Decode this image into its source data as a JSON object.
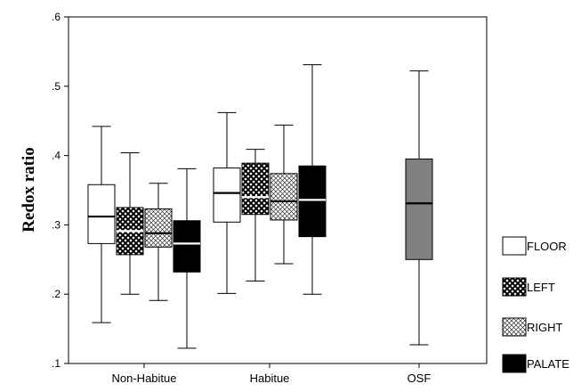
{
  "chart_data": {
    "type": "boxplot",
    "ylabel": "Redox ratio",
    "xlabel": "",
    "ylim": [
      0.1,
      0.6
    ],
    "yticks": [
      0.1,
      0.2,
      0.3,
      0.4,
      0.5,
      0.6
    ],
    "ytick_labels": [
      ".1",
      ".2",
      ".3",
      ".4",
      ".5",
      ".6"
    ],
    "categories": [
      "Non-Habitue",
      "Habitue",
      "OSF"
    ],
    "legend": {
      "position": "right",
      "entries": [
        {
          "name": "FLOOR",
          "fill": "white",
          "color": "#ffffff"
        },
        {
          "name": "LEFT",
          "fill": "dense-crosshatch",
          "color": "#333333"
        },
        {
          "name": "RIGHT",
          "fill": "light-crosshatch",
          "color": "#cccccc"
        },
        {
          "name": "PALATE",
          "fill": "solid",
          "color": "#000000"
        }
      ]
    },
    "series": [
      {
        "name": "FLOOR",
        "category": "Non-Habitue",
        "min": 0.159,
        "q1": 0.273,
        "median": 0.312,
        "q3": 0.358,
        "max": 0.442
      },
      {
        "name": "LEFT",
        "category": "Non-Habitue",
        "min": 0.2,
        "q1": 0.257,
        "median": 0.291,
        "q3": 0.325,
        "max": 0.404
      },
      {
        "name": "RIGHT",
        "category": "Non-Habitue",
        "min": 0.191,
        "q1": 0.268,
        "median": 0.288,
        "q3": 0.323,
        "max": 0.36
      },
      {
        "name": "PALATE",
        "category": "Non-Habitue",
        "min": 0.122,
        "q1": 0.232,
        "median": 0.273,
        "q3": 0.306,
        "max": 0.381
      },
      {
        "name": "FLOOR",
        "category": "Habitue",
        "min": 0.201,
        "q1": 0.304,
        "median": 0.346,
        "q3": 0.382,
        "max": 0.462
      },
      {
        "name": "LEFT",
        "category": "Habitue",
        "min": 0.219,
        "q1": 0.315,
        "median": 0.34,
        "q3": 0.389,
        "max": 0.409
      },
      {
        "name": "RIGHT",
        "category": "Habitue",
        "min": 0.244,
        "q1": 0.307,
        "median": 0.334,
        "q3": 0.374,
        "max": 0.444
      },
      {
        "name": "PALATE",
        "category": "Habitue",
        "min": 0.2,
        "q1": 0.283,
        "median": 0.336,
        "q3": 0.385,
        "max": 0.531
      },
      {
        "name": "OSF",
        "category": "OSF",
        "min": 0.127,
        "q1": 0.25,
        "median": 0.331,
        "q3": 0.395,
        "max": 0.522
      }
    ],
    "colors": {
      "FLOOR": "#ffffff",
      "LEFT": "#333333",
      "RIGHT": "#cccccc",
      "PALATE": "#000000",
      "OSF": "#808080"
    }
  }
}
